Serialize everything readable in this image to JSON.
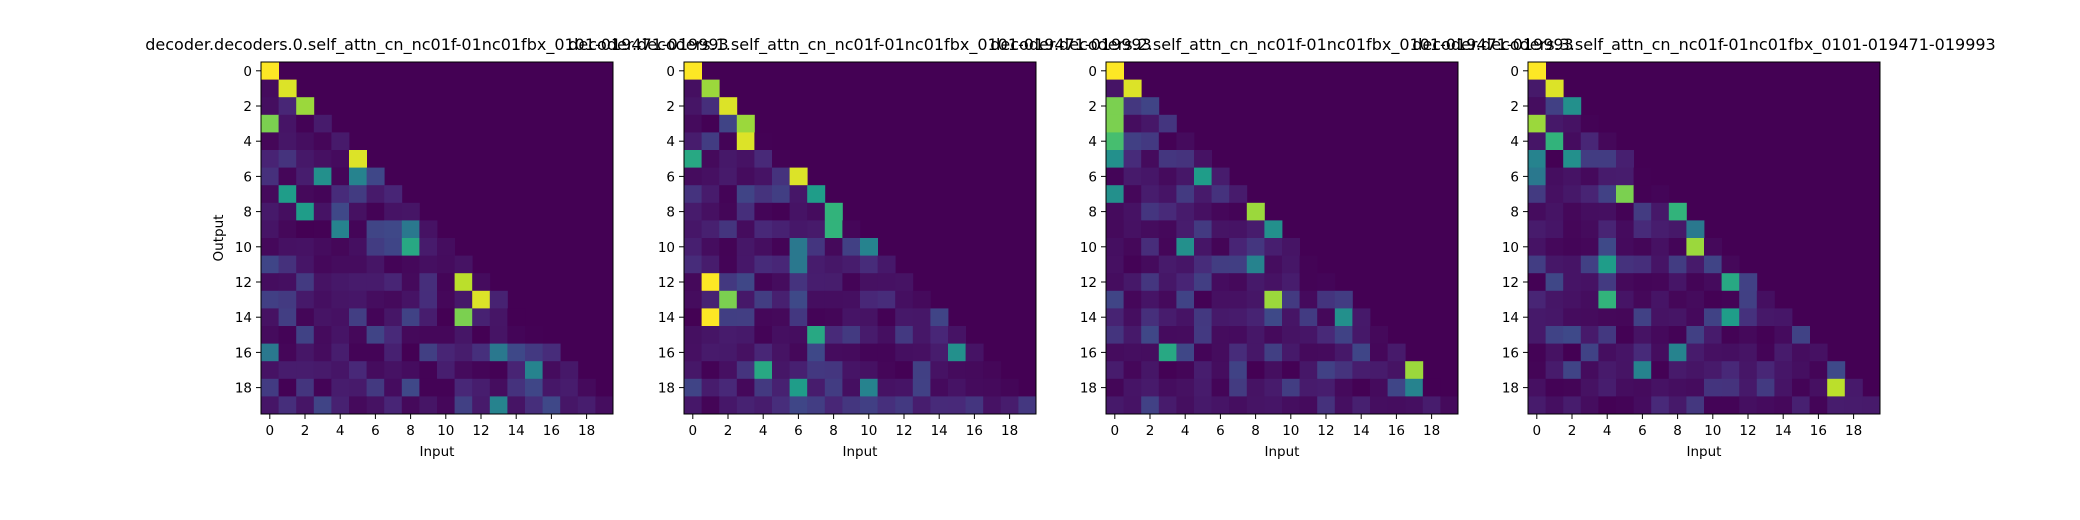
{
  "chart_data": [
    {
      "type": "heatmap",
      "title": "decoder.decoders.0.self_attn_cn_nc01f-01nc01fbx_0101-019471-019993",
      "xlabel": "Input",
      "ylabel": "Output",
      "x_ticks": [
        "0",
        "2",
        "4",
        "6",
        "8",
        "10",
        "12",
        "14",
        "16",
        "18"
      ],
      "y_ticks": [
        "0",
        "2",
        "4",
        "6",
        "8",
        "10",
        "12",
        "14",
        "16",
        "18"
      ],
      "colormap": "viridis",
      "value_range": [
        0,
        1
      ],
      "size": [
        20,
        20
      ],
      "description_of_values": "lower-triangular attention weights; strong cells listed in peaks, remaining lower-triangle cells have small weights",
      "peaks": [
        [
          0,
          0,
          1.0
        ],
        [
          1,
          1,
          0.95
        ],
        [
          2,
          2,
          0.85
        ],
        [
          3,
          0,
          0.8
        ],
        [
          5,
          5,
          0.95
        ],
        [
          6,
          3,
          0.5
        ],
        [
          6,
          5,
          0.45
        ],
        [
          7,
          1,
          0.55
        ],
        [
          8,
          2,
          0.55
        ],
        [
          9,
          4,
          0.45
        ],
        [
          9,
          8,
          0.4
        ],
        [
          10,
          8,
          0.6
        ],
        [
          12,
          11,
          0.9
        ],
        [
          13,
          12,
          0.95
        ],
        [
          14,
          11,
          0.8
        ],
        [
          16,
          0,
          0.4
        ],
        [
          16,
          13,
          0.4
        ],
        [
          17,
          15,
          0.45
        ],
        [
          19,
          13,
          0.45
        ]
      ]
    },
    {
      "type": "heatmap",
      "title": "decoder.decoders.1.self_attn_cn_nc01f-01nc01fbx_0101-019471-019993",
      "xlabel": "Input",
      "ylabel": "",
      "x_ticks": [
        "0",
        "2",
        "4",
        "6",
        "8",
        "10",
        "12",
        "14",
        "16",
        "18"
      ],
      "y_ticks": [
        "0",
        "2",
        "4",
        "6",
        "8",
        "10",
        "12",
        "14",
        "16",
        "18"
      ],
      "colormap": "viridis",
      "value_range": [
        0,
        1
      ],
      "size": [
        20,
        20
      ],
      "peaks": [
        [
          0,
          0,
          1.0
        ],
        [
          1,
          1,
          0.85
        ],
        [
          2,
          2,
          0.95
        ],
        [
          3,
          3,
          0.85
        ],
        [
          4,
          3,
          0.95
        ],
        [
          5,
          0,
          0.6
        ],
        [
          6,
          6,
          0.95
        ],
        [
          7,
          7,
          0.55
        ],
        [
          8,
          8,
          0.65
        ],
        [
          9,
          8,
          0.65
        ],
        [
          10,
          6,
          0.4
        ],
        [
          10,
          10,
          0.45
        ],
        [
          11,
          6,
          0.4
        ],
        [
          12,
          1,
          1.0
        ],
        [
          13,
          2,
          0.8
        ],
        [
          14,
          1,
          1.0
        ],
        [
          15,
          7,
          0.6
        ],
        [
          16,
          15,
          0.5
        ],
        [
          17,
          4,
          0.6
        ],
        [
          18,
          6,
          0.55
        ],
        [
          18,
          10,
          0.45
        ]
      ]
    },
    {
      "type": "heatmap",
      "title": "decoder.decoders.2.self_attn_cn_nc01f-01nc01fbx_0101-019471-019993",
      "xlabel": "Input",
      "ylabel": "",
      "x_ticks": [
        "0",
        "2",
        "4",
        "6",
        "8",
        "10",
        "12",
        "14",
        "16",
        "18"
      ],
      "y_ticks": [
        "0",
        "2",
        "4",
        "6",
        "8",
        "10",
        "12",
        "14",
        "16",
        "18"
      ],
      "colormap": "viridis",
      "value_range": [
        0,
        1
      ],
      "size": [
        20,
        20
      ],
      "peaks": [
        [
          0,
          0,
          1.0
        ],
        [
          1,
          1,
          0.95
        ],
        [
          2,
          0,
          0.8
        ],
        [
          3,
          0,
          0.8
        ],
        [
          4,
          0,
          0.7
        ],
        [
          5,
          0,
          0.5
        ],
        [
          6,
          5,
          0.55
        ],
        [
          7,
          0,
          0.5
        ],
        [
          8,
          8,
          0.85
        ],
        [
          9,
          9,
          0.5
        ],
        [
          10,
          4,
          0.5
        ],
        [
          11,
          8,
          0.45
        ],
        [
          13,
          9,
          0.85
        ],
        [
          14,
          13,
          0.5
        ],
        [
          16,
          3,
          0.6
        ],
        [
          17,
          17,
          0.85
        ],
        [
          18,
          17,
          0.45
        ]
      ]
    },
    {
      "type": "heatmap",
      "title": "decoder.decoders.3.self_attn_cn_nc01f-01nc01fbx_0101-019471-019993",
      "xlabel": "Input",
      "ylabel": "",
      "x_ticks": [
        "0",
        "2",
        "4",
        "6",
        "8",
        "10",
        "12",
        "14",
        "16",
        "18"
      ],
      "y_ticks": [
        "0",
        "2",
        "4",
        "6",
        "8",
        "10",
        "12",
        "14",
        "16",
        "18"
      ],
      "colormap": "viridis",
      "value_range": [
        0,
        1
      ],
      "size": [
        20,
        20
      ],
      "peaks": [
        [
          0,
          0,
          1.0
        ],
        [
          1,
          1,
          0.95
        ],
        [
          2,
          2,
          0.5
        ],
        [
          3,
          0,
          0.85
        ],
        [
          4,
          1,
          0.65
        ],
        [
          5,
          0,
          0.45
        ],
        [
          5,
          2,
          0.5
        ],
        [
          6,
          0,
          0.4
        ],
        [
          7,
          5,
          0.8
        ],
        [
          8,
          8,
          0.65
        ],
        [
          9,
          9,
          0.4
        ],
        [
          10,
          9,
          0.85
        ],
        [
          11,
          4,
          0.55
        ],
        [
          12,
          11,
          0.6
        ],
        [
          13,
          4,
          0.65
        ],
        [
          14,
          11,
          0.55
        ],
        [
          16,
          8,
          0.45
        ],
        [
          17,
          6,
          0.45
        ],
        [
          18,
          17,
          0.9
        ]
      ]
    }
  ]
}
